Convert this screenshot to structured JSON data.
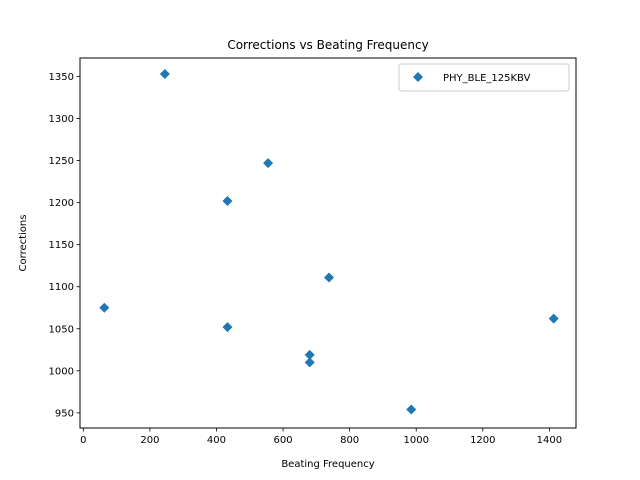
{
  "chart_data": {
    "type": "scatter",
    "title": "Corrections vs Beating Frequency",
    "xlabel": "Beating Frequency",
    "ylabel": "Corrections",
    "xlim": [
      -10,
      1480
    ],
    "ylim": [
      932,
      1372
    ],
    "xticks": [
      0,
      200,
      400,
      600,
      800,
      1000,
      1200,
      1400
    ],
    "yticks": [
      950,
      1000,
      1050,
      1100,
      1150,
      1200,
      1250,
      1300,
      1350
    ],
    "grid": false,
    "legend_position": "top-right",
    "marker": "diamond",
    "series": [
      {
        "name": "PHY_BLE_125KBV",
        "color": "#1f77b4",
        "points": [
          {
            "x": 245,
            "y": 1353
          },
          {
            "x": 555,
            "y": 1247
          },
          {
            "x": 433,
            "y": 1202
          },
          {
            "x": 738,
            "y": 1111
          },
          {
            "x": 63,
            "y": 1075
          },
          {
            "x": 1413,
            "y": 1062
          },
          {
            "x": 433,
            "y": 1052
          },
          {
            "x": 680,
            "y": 1019
          },
          {
            "x": 680,
            "y": 1010
          },
          {
            "x": 985,
            "y": 954
          }
        ]
      }
    ]
  }
}
